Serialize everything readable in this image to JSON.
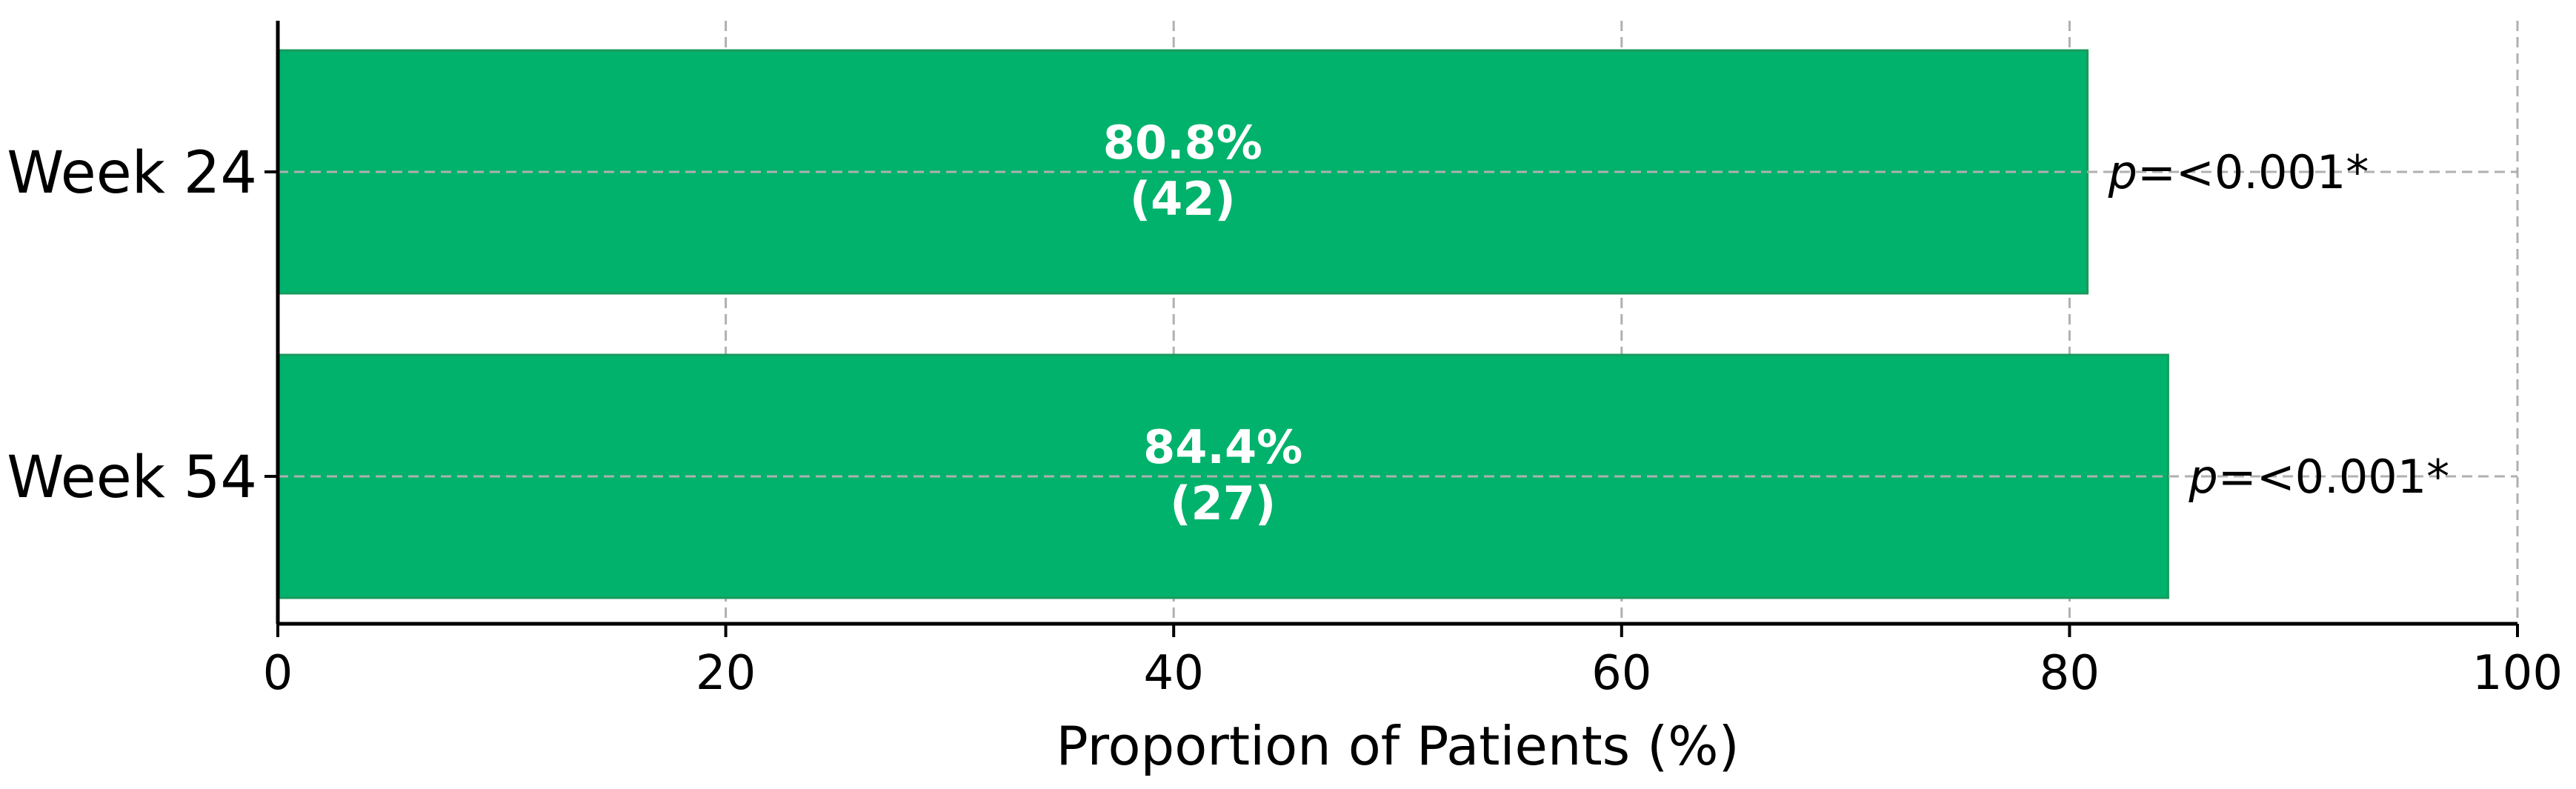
{
  "chart_data": {
    "type": "bar",
    "orientation": "horizontal",
    "categories": [
      "Week 24",
      "Week 54"
    ],
    "values": [
      80.8,
      84.4
    ],
    "counts": [
      "(42)",
      "(27)"
    ],
    "value_labels": [
      "80.8%",
      "84.4%"
    ],
    "annotations": [
      "=<0.001*",
      "=<0.001*"
    ],
    "annotation_prefix": "p",
    "xlabel": "Proportion of Patients (%)",
    "ylabel": "",
    "title": "",
    "xlim": [
      0,
      100
    ],
    "xticks": [
      0,
      20,
      40,
      60,
      80,
      100
    ],
    "grid": true,
    "bar_color": "#00b26b",
    "bar_edge_color": "#1a9a5e"
  }
}
